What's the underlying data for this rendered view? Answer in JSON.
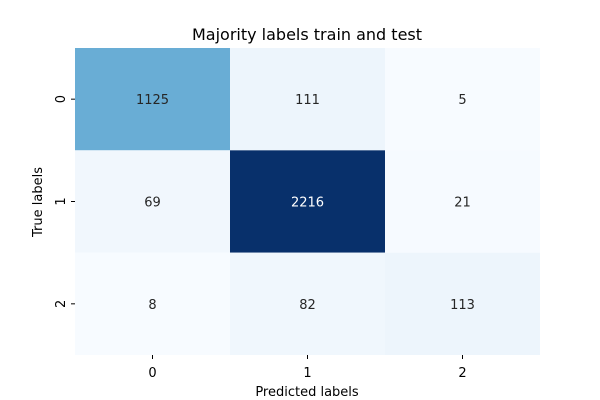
{
  "chart_data": {
    "type": "heatmap",
    "title": "Majority labels train and test",
    "xlabel": "Predicted labels",
    "ylabel": "True labels",
    "x_categories": [
      "0",
      "1",
      "2"
    ],
    "y_categories": [
      "0",
      "1",
      "2"
    ],
    "values": [
      [
        1125,
        111,
        5
      ],
      [
        69,
        2216,
        21
      ],
      [
        8,
        82,
        113
      ]
    ],
    "colormap": "Blues",
    "vmin": 5,
    "vmax": 2216,
    "colorbar": false
  }
}
